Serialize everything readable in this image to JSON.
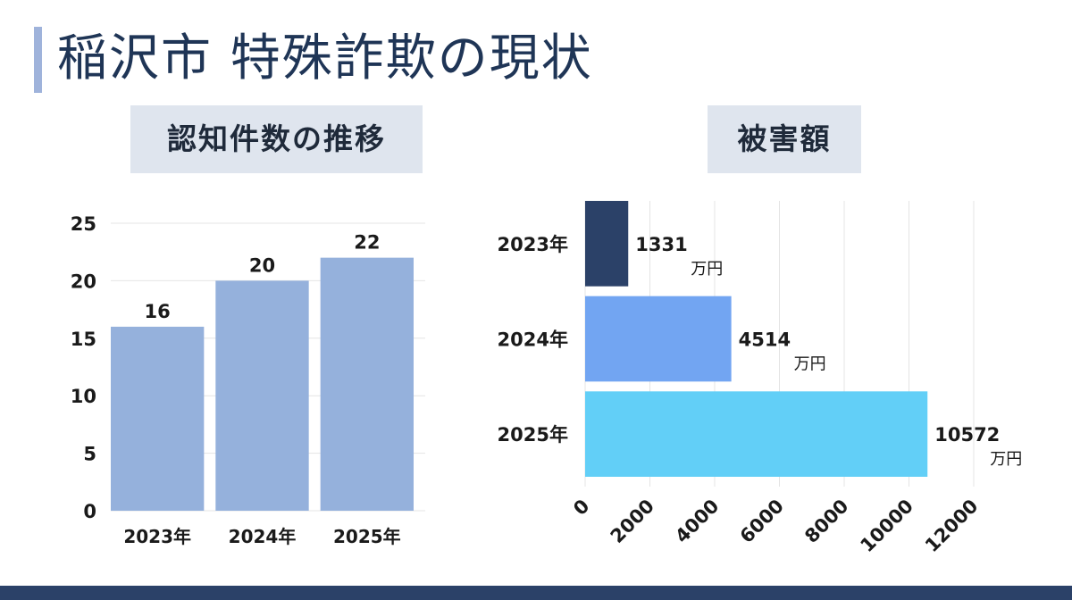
{
  "page": {
    "title": "稲沢市 特殊詐欺の現状"
  },
  "chart_data": [
    {
      "type": "bar",
      "label": "認知件数の推移",
      "categories": [
        "2023年",
        "2024年",
        "2025年"
      ],
      "values": [
        16,
        20,
        22
      ],
      "ylim": [
        0,
        25
      ],
      "yticks": [
        0,
        5,
        10,
        15,
        20,
        25
      ],
      "grid": true,
      "colors": [
        "#95b1dc",
        "#95b1dc",
        "#95b1dc"
      ]
    },
    {
      "type": "bar",
      "orientation": "horizontal",
      "label": "被害額",
      "categories": [
        "2023年",
        "2024年",
        "2025年"
      ],
      "values": [
        1331,
        4514,
        10572
      ],
      "unit": "万円",
      "xlim": [
        0,
        12000
      ],
      "xticks": [
        0,
        2000,
        4000,
        6000,
        8000,
        10000,
        12000
      ],
      "grid": true,
      "colors": [
        "#2b4168",
        "#72a5f2",
        "#62cff7"
      ]
    }
  ]
}
